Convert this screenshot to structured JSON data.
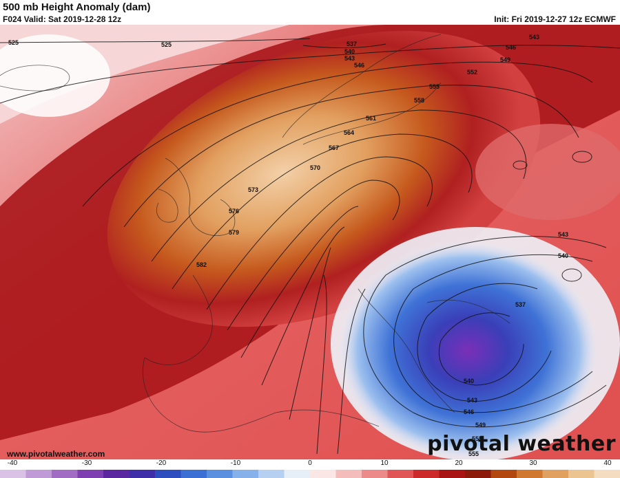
{
  "header": {
    "title": "500 mb Height Anomaly (dam)",
    "valid": "F024 Valid: Sat 2019-12-28 12z",
    "init": "Init: Fri 2019-12-27 12z ECMWF"
  },
  "contour_labels": [
    "525",
    "525",
    "537",
    "540",
    "543",
    "546",
    "543",
    "546",
    "549",
    "552",
    "555",
    "558",
    "561",
    "564",
    "567",
    "570",
    "573",
    "576",
    "579",
    "582",
    "543",
    "540",
    "537",
    "540",
    "543",
    "546",
    "549",
    "555",
    "555"
  ],
  "colorbar": {
    "tick_labels": [
      "-40",
      "-30",
      "-20",
      "-10",
      "0",
      "10",
      "20",
      "30",
      "40"
    ],
    "colors": [
      "#d9c2e6",
      "#c09ad6",
      "#a06cc4",
      "#7e3fb0",
      "#5a27a0",
      "#3e2fa8",
      "#2e4ec0",
      "#3c6fd4",
      "#5b8fe0",
      "#85b0ea",
      "#b6d0f2",
      "#e6eef8",
      "#fbe6e6",
      "#f5bcbc",
      "#ec8a8a",
      "#e05555",
      "#cc2a2a",
      "#a81414",
      "#8c1a0a",
      "#b2470f",
      "#d07830",
      "#e0a060",
      "#ecc490",
      "#f3dcc0"
    ]
  },
  "footer": {
    "website": "www.pivotalweather.com",
    "brand": "pivotal weather"
  }
}
